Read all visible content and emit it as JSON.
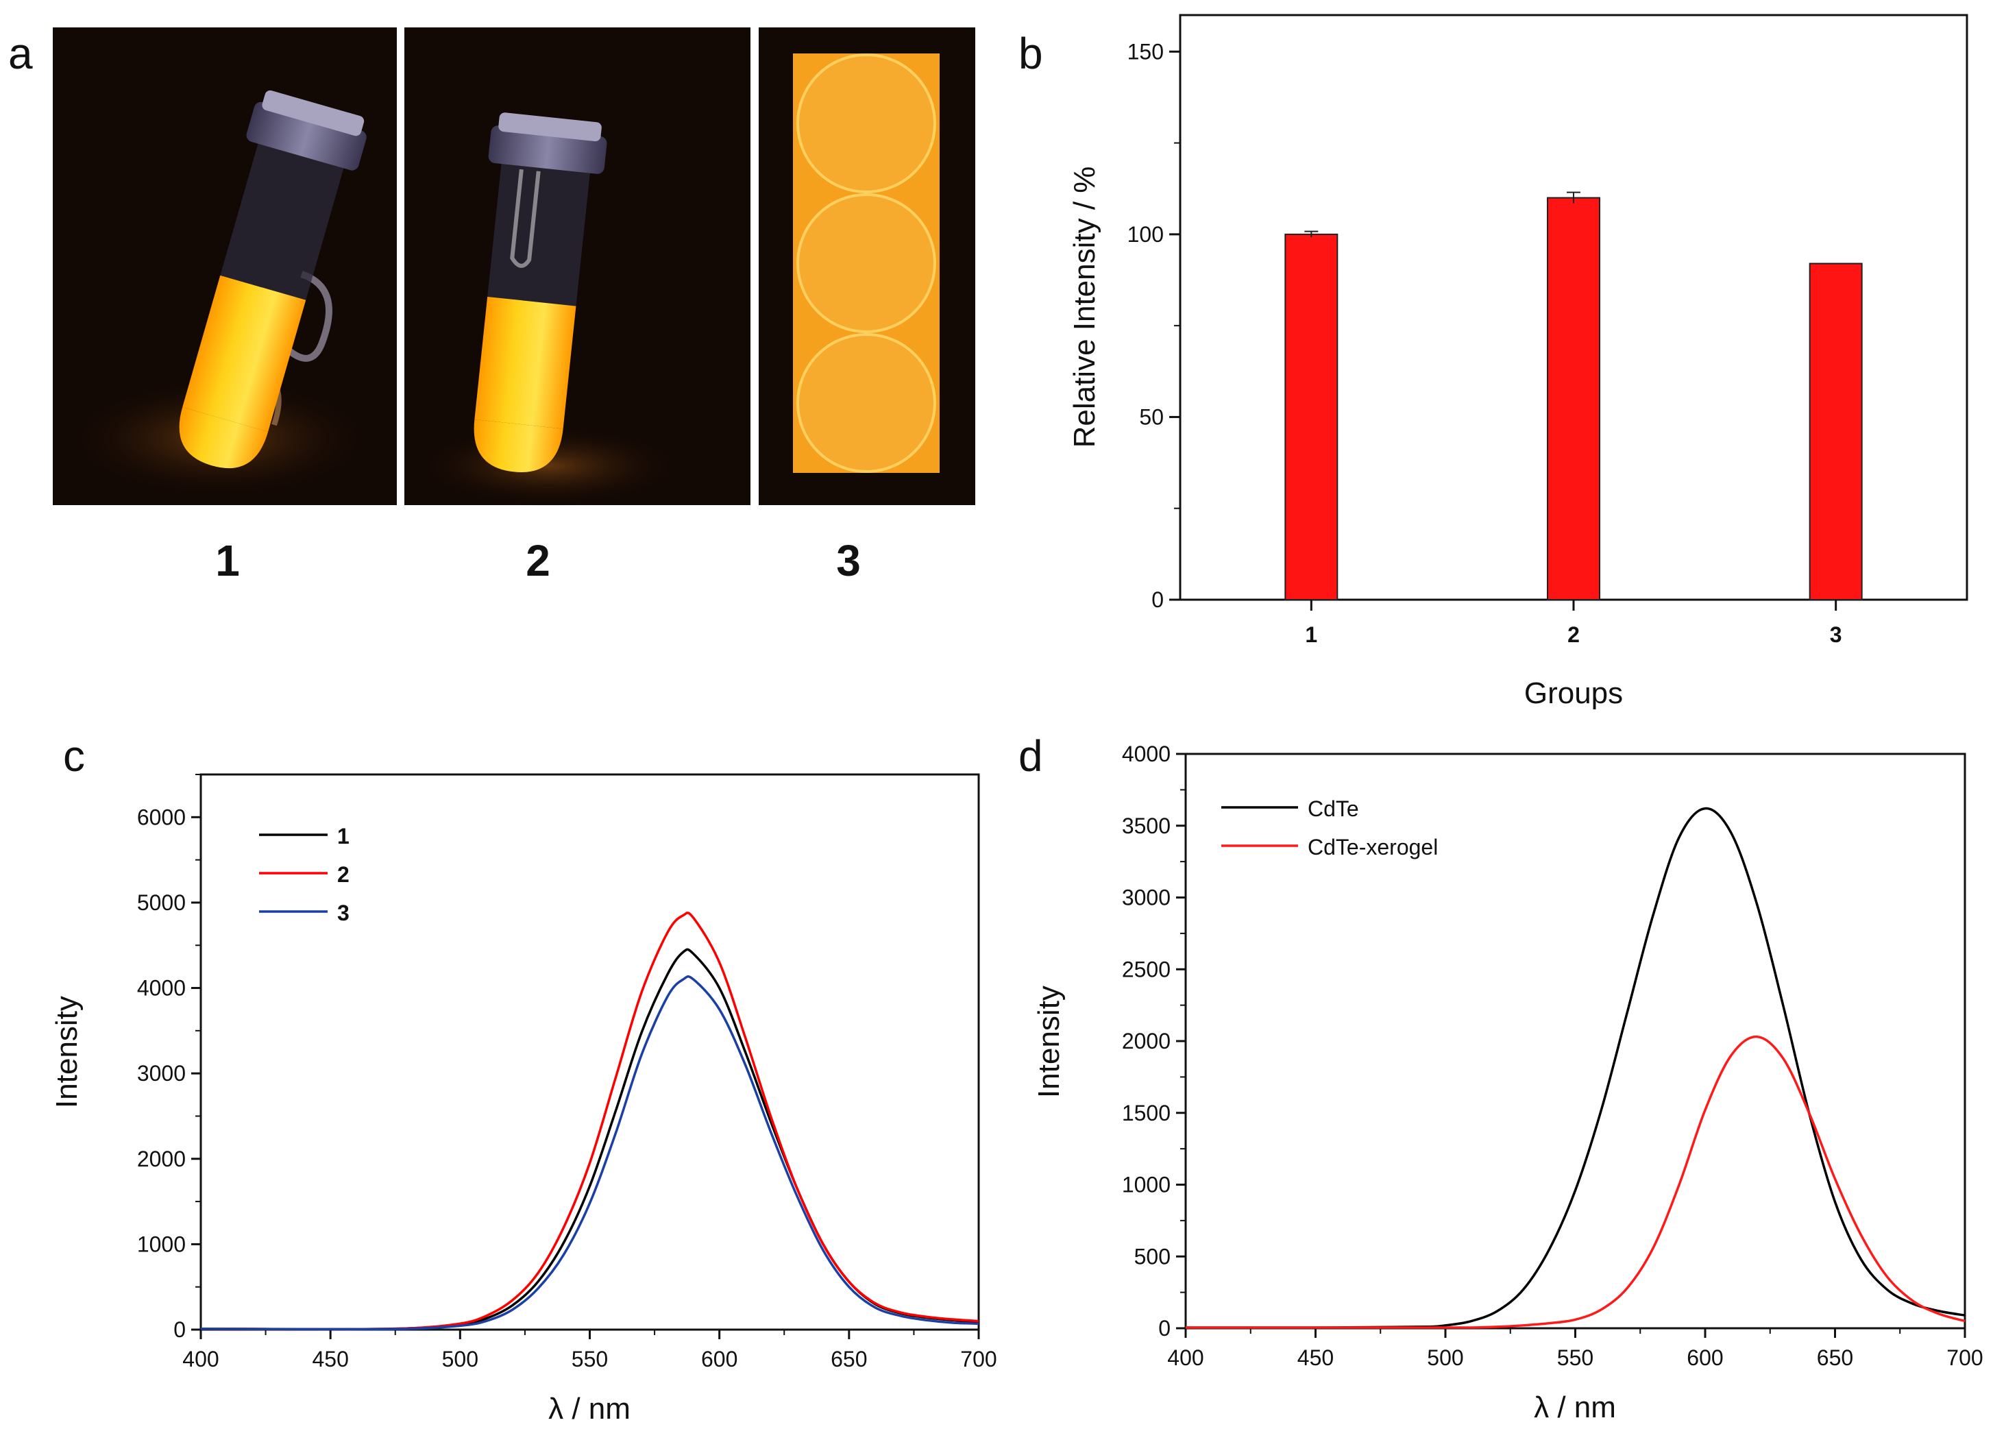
{
  "figure": {
    "panel_labels": [
      "a",
      "b",
      "c",
      "d"
    ]
  },
  "photos": {
    "labels": [
      "1",
      "2",
      "3"
    ],
    "colors": {
      "glow": "#ffd21a",
      "glow_edge": "#ff9a00",
      "bg": "#120804",
      "plate": "#f5a11e"
    }
  },
  "chart_data": [
    {
      "panel": "b",
      "type": "bar",
      "title": "",
      "categories": [
        "1",
        "2",
        "3"
      ],
      "values": [
        100,
        110,
        92
      ],
      "errors": [
        0.8,
        1.5,
        0
      ],
      "xlabel": "Groups",
      "ylabel": "Relative Intensity / %",
      "ylim": [
        0,
        160
      ],
      "yticks": [
        0,
        50,
        100,
        150
      ],
      "bar_color": "#ff1414"
    },
    {
      "panel": "c",
      "type": "line",
      "title": "",
      "xlabel": "λ / nm",
      "ylabel": "Intensity",
      "xlim": [
        400,
        700
      ],
      "ylim": [
        0,
        6500
      ],
      "xticks": [
        400,
        450,
        500,
        550,
        600,
        650,
        700
      ],
      "yticks": [
        0,
        1000,
        2000,
        3000,
        4000,
        5000,
        6000
      ],
      "legend": "top-left",
      "x": [
        400,
        450,
        480,
        500,
        510,
        520,
        530,
        540,
        550,
        560,
        570,
        580,
        586,
        590,
        600,
        610,
        620,
        630,
        640,
        650,
        660,
        670,
        680,
        690,
        700
      ],
      "series": [
        {
          "name": "1",
          "color": "#000000",
          "values": [
            10,
            5,
            15,
            60,
            130,
            280,
            560,
            1020,
            1680,
            2560,
            3480,
            4160,
            4420,
            4400,
            4000,
            3250,
            2420,
            1650,
            1000,
            560,
            300,
            190,
            140,
            110,
            90
          ]
        },
        {
          "name": "2",
          "color": "#ff0000",
          "values": [
            10,
            5,
            15,
            70,
            160,
            340,
            660,
            1200,
            1950,
            2950,
            3950,
            4650,
            4850,
            4820,
            4300,
            3420,
            2480,
            1650,
            1000,
            560,
            310,
            200,
            150,
            120,
            100
          ]
        },
        {
          "name": "3",
          "color": "#1a3fa6",
          "values": [
            10,
            5,
            10,
            45,
            100,
            230,
            480,
            880,
            1480,
            2300,
            3220,
            3900,
            4100,
            4100,
            3750,
            3100,
            2300,
            1560,
            930,
            500,
            260,
            160,
            110,
            80,
            70
          ]
        }
      ]
    },
    {
      "panel": "d",
      "type": "line",
      "title": "",
      "xlabel": "λ / nm",
      "ylabel": "Intensity",
      "xlim": [
        400,
        700
      ],
      "ylim": [
        0,
        4000
      ],
      "xticks": [
        400,
        450,
        500,
        550,
        600,
        650,
        700
      ],
      "yticks": [
        0,
        500,
        1000,
        1500,
        2000,
        2500,
        3000,
        3500,
        4000
      ],
      "legend": "top-left",
      "x": [
        400,
        450,
        490,
        500,
        510,
        520,
        530,
        540,
        550,
        560,
        570,
        580,
        590,
        600,
        610,
        620,
        630,
        640,
        650,
        660,
        670,
        680,
        690,
        700
      ],
      "series": [
        {
          "name": "CdTe",
          "color": "#000000",
          "values": [
            5,
            5,
            10,
            20,
            50,
            120,
            270,
            550,
            960,
            1520,
            2200,
            2880,
            3420,
            3620,
            3450,
            2950,
            2250,
            1500,
            880,
            480,
            270,
            170,
            120,
            90
          ]
        },
        {
          "name": "CdTe-xerogel",
          "color": "#ff1a1a",
          "values": [
            5,
            5,
            5,
            5,
            5,
            10,
            20,
            35,
            60,
            130,
            280,
            560,
            1000,
            1520,
            1900,
            2030,
            1880,
            1500,
            1040,
            650,
            360,
            190,
            100,
            50
          ]
        }
      ]
    }
  ]
}
